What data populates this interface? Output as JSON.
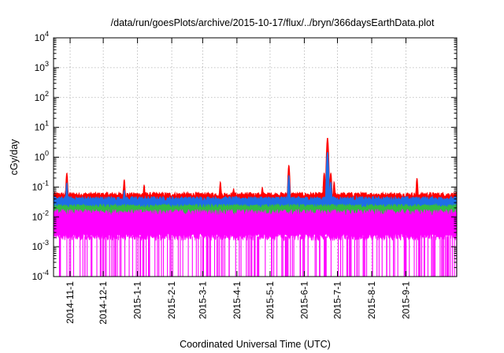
{
  "chart_data": {
    "type": "line",
    "title": "/data/run/goesPlots/archive/2015-10-17/flux/../bryn/366daysEarthData.plot",
    "xlabel": "Coordinated Universal Time (UTC)",
    "ylabel": "cGy/day",
    "yscale": "log",
    "ylim": [
      0.0001,
      10000
    ],
    "xlim": [
      "2014-10-17",
      "2015-10-17"
    ],
    "grid": true,
    "y_ticks": [
      {
        "value": 0.0001,
        "base": "10",
        "exp": "-4"
      },
      {
        "value": 0.001,
        "base": "10",
        "exp": "-3"
      },
      {
        "value": 0.01,
        "base": "10",
        "exp": "-2"
      },
      {
        "value": 0.1,
        "base": "10",
        "exp": "-1"
      },
      {
        "value": 1,
        "base": "10",
        "exp": "0"
      },
      {
        "value": 10,
        "base": "10",
        "exp": "1"
      },
      {
        "value": 100,
        "base": "10",
        "exp": "2"
      },
      {
        "value": 1000,
        "base": "10",
        "exp": "3"
      },
      {
        "value": 10000,
        "base": "10",
        "exp": "4"
      }
    ],
    "x_ticks": [
      "2014-11-1",
      "2014-12-1",
      "2015-1-1",
      "2015-2-1",
      "2015-3-1",
      "2015-4-1",
      "2015-5-1",
      "2015-6-1",
      "2015-7-1",
      "2015-8-1",
      "2015-9-1"
    ],
    "series": [
      {
        "color": "#ff0000",
        "baseline": 0.055,
        "spikes": [
          {
            "date": "2014-10-29",
            "value": 0.3
          },
          {
            "date": "2014-12-20",
            "value": 0.18
          },
          {
            "date": "2015-01-07",
            "value": 0.12
          },
          {
            "date": "2015-03-17",
            "value": 0.15
          },
          {
            "date": "2015-03-29",
            "value": 0.09
          },
          {
            "date": "2015-04-24",
            "value": 0.1
          },
          {
            "date": "2015-05-18",
            "value": 0.55
          },
          {
            "date": "2015-06-19",
            "value": 0.3
          },
          {
            "date": "2015-06-22",
            "value": 4.5
          },
          {
            "date": "2015-06-25",
            "value": 0.3
          },
          {
            "date": "2015-06-28",
            "value": 0.15
          },
          {
            "date": "2015-09-11",
            "value": 0.2
          }
        ]
      },
      {
        "color": "#1e6ee8",
        "baseline": 0.04,
        "spikes": [
          {
            "date": "2014-10-29",
            "value": 0.14
          },
          {
            "date": "2014-12-20",
            "value": 0.08
          },
          {
            "date": "2015-05-18",
            "value": 0.25
          },
          {
            "date": "2015-06-22",
            "value": 1.5
          },
          {
            "date": "2015-06-25",
            "value": 0.15
          }
        ]
      },
      {
        "color": "#33bb44",
        "baseline": 0.022
      },
      {
        "color": "#ff00ff",
        "baseline": 0.012,
        "band_low": 0.002
      }
    ]
  }
}
